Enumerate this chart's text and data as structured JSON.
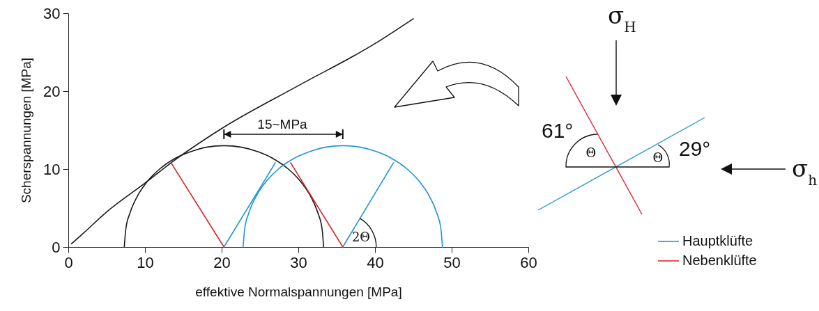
{
  "chart_data": {
    "type": "line",
    "xlabel": "effektive Normalspannungen [MPa]",
    "ylabel": "Scherspannungen [MPa]",
    "xlim": [
      0,
      60
    ],
    "xticks": [
      0,
      10,
      20,
      30,
      40,
      50,
      60
    ],
    "ylim": [
      0,
      30
    ],
    "yticks": [
      0,
      10,
      20,
      30
    ],
    "series": [
      {
        "color": "#1a1a1a",
        "x": [
          0.4,
          2,
          5,
          10,
          13.4,
          20,
          30,
          40,
          45
        ],
        "values": [
          0.4,
          1.8,
          4.5,
          8.2,
          10.8,
          15.2,
          20.7,
          26.1,
          29.3
        ]
      },
      {
        "color": "#1a1a1a",
        "x": [
          7.3,
          7.5,
          8.1,
          9.0,
          10.3,
          11.9,
          13.8,
          15.9,
          18.0,
          20.3,
          22.6,
          24.8,
          26.8,
          28.7,
          30.3,
          31.6,
          32.5,
          33.1,
          33.3
        ],
        "values": [
          0,
          2.3,
          4.5,
          6.5,
          8.4,
          10,
          11.3,
          12.2,
          12.8,
          13,
          12.8,
          12.2,
          11.3,
          10,
          8.4,
          6.5,
          4.5,
          2.3,
          0
        ]
      },
      {
        "color": "#1e96d2",
        "x": [
          22.8,
          23.0,
          23.6,
          24.5,
          25.8,
          27.4,
          29.3,
          31.4,
          33.5,
          35.8,
          38.1,
          40.3,
          42.3,
          44.2,
          45.8,
          47.1,
          48.0,
          48.6,
          48.8
        ],
        "values": [
          0,
          2.3,
          4.5,
          6.5,
          8.4,
          10,
          11.3,
          12.2,
          12.8,
          13,
          12.8,
          12.2,
          11.3,
          10,
          8.4,
          6.5,
          4.5,
          2.3,
          0
        ]
      },
      {
        "name": "Hauptklüfte",
        "color": "#1e96d2",
        "x": [
          20.3,
          27.0,
          null,
          35.8,
          42.4
        ],
        "values": [
          0,
          10.8,
          null,
          0,
          10.8
        ]
      },
      {
        "name": "Nebenklüfte",
        "color": "#d9262b",
        "x": [
          20.3,
          13.4,
          null,
          35.8,
          29.0
        ],
        "values": [
          0,
          10.8,
          null,
          0,
          10.8
        ]
      }
    ],
    "legend": "bottom right",
    "annotations": [
      "15~MPa",
      "2Θ",
      "σ$_{H}$",
      "σ$_{h}$",
      "61°",
      "29°",
      "Θ",
      "Θ"
    ]
  }
}
